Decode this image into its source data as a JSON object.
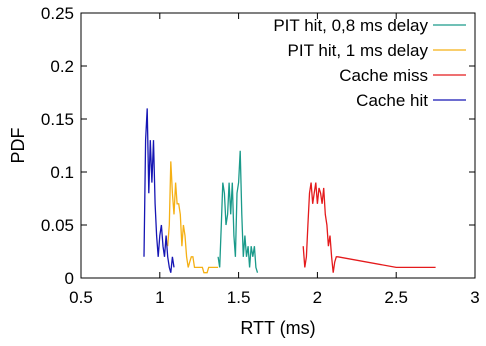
{
  "chart_data": {
    "type": "line",
    "title": "",
    "xlabel": "RTT (ms)",
    "ylabel": "PDF",
    "xlim": [
      0.5,
      3
    ],
    "ylim": [
      0,
      0.25
    ],
    "xticks": [
      0.5,
      1,
      1.5,
      2,
      2.5,
      3
    ],
    "xtick_labels": [
      "0.5",
      "1",
      "1.5",
      "2",
      "2.5",
      "3"
    ],
    "yticks": [
      0,
      0.05,
      0.1,
      0.15,
      0.2,
      0.25
    ],
    "ytick_labels": [
      "0",
      "0.05",
      "0.1",
      "0.15",
      "0.2",
      "0.25"
    ],
    "grid": false,
    "legend_position": "top-right",
    "series": [
      {
        "name": "PIT hit, 0,8 ms delay",
        "color": "#1a9a8a",
        "x": [
          1.37,
          1.38,
          1.39,
          1.4,
          1.41,
          1.42,
          1.43,
          1.44,
          1.45,
          1.46,
          1.47,
          1.48,
          1.49,
          1.5,
          1.51,
          1.52,
          1.53,
          1.54,
          1.55,
          1.56,
          1.57,
          1.58,
          1.59,
          1.6,
          1.61,
          1.62
        ],
        "y": [
          0.02,
          0.01,
          0.05,
          0.09,
          0.08,
          0.05,
          0.06,
          0.09,
          0.06,
          0.09,
          0.04,
          0.02,
          0.08,
          0.09,
          0.12,
          0.06,
          0.02,
          0.04,
          0.02,
          0.03,
          0.01,
          0.03,
          0.02,
          0.03,
          0.01,
          0.005
        ]
      },
      {
        "name": "PIT hit, 1 ms delay",
        "color": "#f5b014",
        "x": [
          1.05,
          1.06,
          1.07,
          1.08,
          1.09,
          1.1,
          1.11,
          1.12,
          1.13,
          1.14,
          1.15,
          1.16,
          1.17,
          1.18,
          1.19,
          1.2,
          1.21,
          1.22,
          1.23,
          1.24,
          1.25,
          1.26,
          1.27,
          1.28,
          1.29,
          1.3,
          1.31,
          1.32,
          1.33,
          1.34,
          1.35,
          1.36,
          1.37
        ],
        "y": [
          0.03,
          0.05,
          0.11,
          0.08,
          0.06,
          0.09,
          0.07,
          0.07,
          0.06,
          0.03,
          0.05,
          0.04,
          0.02,
          0.01,
          0.015,
          0.02,
          0.02,
          0.01,
          0.01,
          0.01,
          0.01,
          0.01,
          0.01,
          0.005,
          0.005,
          0.005,
          0.01,
          0.01,
          0.01,
          0.01,
          0.01,
          0.01,
          0.01
        ]
      },
      {
        "name": "Cache miss",
        "color": "#e41a1c",
        "x": [
          1.91,
          1.92,
          1.93,
          1.94,
          1.95,
          1.96,
          1.97,
          1.98,
          1.99,
          2.0,
          2.01,
          2.02,
          2.03,
          2.04,
          2.05,
          2.06,
          2.07,
          2.08,
          2.09,
          2.1,
          2.11,
          2.12,
          2.13,
          2.5,
          2.75
        ],
        "y": [
          0.03,
          0.01,
          0.02,
          0.05,
          0.08,
          0.09,
          0.07,
          0.08,
          0.09,
          0.07,
          0.085,
          0.08,
          0.07,
          0.085,
          0.06,
          0.05,
          0.03,
          0.04,
          0.02,
          0.005,
          0.015,
          0.02,
          0.02,
          0.01,
          0.01
        ]
      },
      {
        "name": "Cache hit",
        "color": "#1616b4",
        "x": [
          0.9,
          0.91,
          0.92,
          0.93,
          0.94,
          0.95,
          0.96,
          0.97,
          0.98,
          0.99,
          1.0,
          1.01,
          1.02,
          1.03,
          1.04,
          1.05,
          1.06,
          1.07,
          1.08,
          1.09
        ],
        "y": [
          0.02,
          0.13,
          0.16,
          0.08,
          0.13,
          0.09,
          0.13,
          0.07,
          0.04,
          0.02,
          0.04,
          0.05,
          0.03,
          0.02,
          0.04,
          0.02,
          0.01,
          0.005,
          0.02,
          0.01
        ]
      }
    ]
  }
}
